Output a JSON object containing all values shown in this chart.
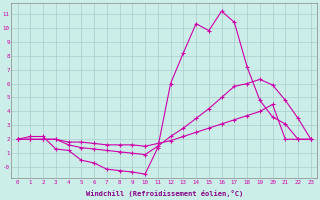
{
  "background_color": "#cceee8",
  "grid_color": "#aacccc",
  "line_color": "#cc00aa",
  "marker": "+",
  "xlabel": "Windchill (Refroidissement éolien,°C)",
  "xlabel_color": "#880088",
  "xlim": [
    -0.5,
    23.5
  ],
  "ylim": [
    -0.8,
    11.8
  ],
  "xticks": [
    0,
    1,
    2,
    3,
    4,
    5,
    6,
    7,
    8,
    9,
    10,
    11,
    12,
    13,
    14,
    15,
    16,
    17,
    18,
    19,
    20,
    21,
    22,
    23
  ],
  "yticks": [
    0,
    1,
    2,
    3,
    4,
    5,
    6,
    7,
    8,
    9,
    10,
    11
  ],
  "ytick_labels": [
    "-0",
    "1",
    "2",
    "3",
    "4",
    "5",
    "6",
    "7",
    "8",
    "9",
    "10",
    "11"
  ],
  "line1_x": [
    0,
    1,
    2,
    3,
    4,
    5,
    6,
    7,
    8,
    9,
    10,
    11,
    12,
    13,
    14,
    15,
    16,
    17,
    18,
    19,
    20,
    21,
    22,
    23
  ],
  "line1_y": [
    2.0,
    2.2,
    2.2,
    1.3,
    1.2,
    0.5,
    0.3,
    -0.15,
    -0.25,
    -0.35,
    -0.5,
    1.4,
    6.0,
    8.2,
    10.3,
    9.8,
    11.2,
    10.4,
    7.2,
    4.8,
    3.6,
    3.1,
    2.0,
    2.0
  ],
  "line2_x": [
    0,
    1,
    2,
    3,
    4,
    5,
    6,
    7,
    8,
    9,
    10,
    11,
    12,
    13,
    14,
    15,
    16,
    17,
    18,
    19,
    20,
    21,
    22,
    23
  ],
  "line2_y": [
    2.0,
    2.0,
    2.0,
    2.0,
    1.6,
    1.4,
    1.3,
    1.2,
    1.1,
    1.0,
    0.9,
    1.5,
    2.2,
    2.8,
    3.5,
    4.2,
    5.0,
    5.8,
    6.0,
    6.3,
    5.9,
    4.8,
    3.5,
    2.0
  ],
  "line3_x": [
    0,
    1,
    2,
    3,
    4,
    5,
    6,
    7,
    8,
    9,
    10,
    11,
    12,
    13,
    14,
    15,
    16,
    17,
    18,
    19,
    20,
    21,
    22,
    23
  ],
  "line3_y": [
    2.0,
    2.0,
    2.0,
    2.0,
    1.8,
    1.8,
    1.7,
    1.6,
    1.6,
    1.6,
    1.5,
    1.7,
    1.9,
    2.2,
    2.5,
    2.8,
    3.1,
    3.4,
    3.7,
    4.0,
    4.5,
    2.0,
    2.0,
    2.0
  ]
}
